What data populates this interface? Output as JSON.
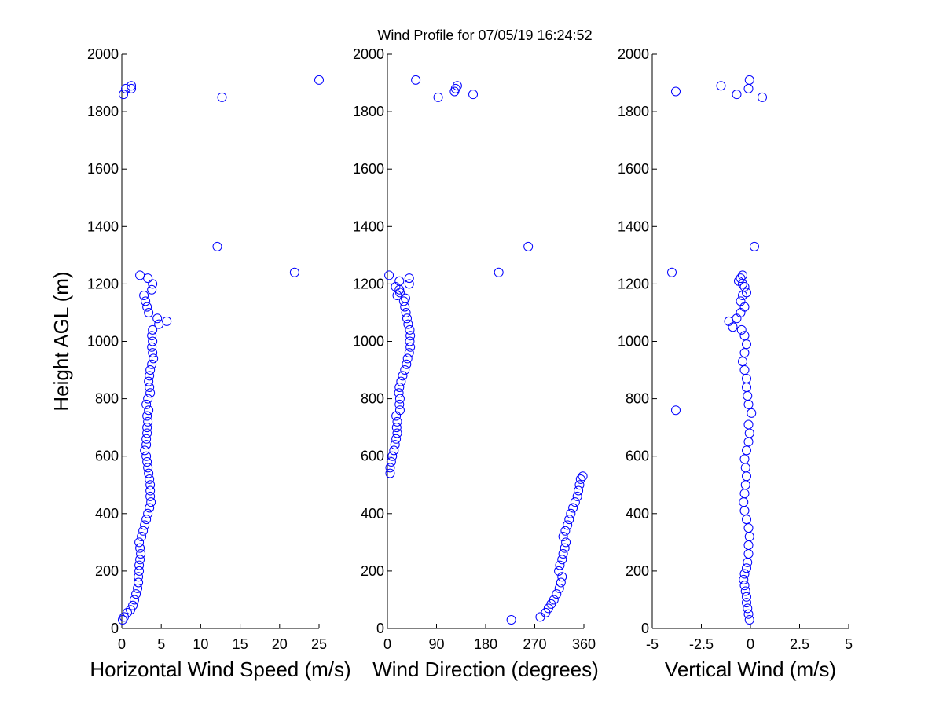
{
  "title": "Wind Profile for  07/05/19 16:24:52",
  "colors": {
    "marker": "#0000ff",
    "axis": "#000000",
    "background": "#ffffff"
  },
  "chart_data": [
    {
      "type": "scatter",
      "xlabel": "Horizontal Wind Speed (m/s)",
      "ylabel": "Height AGL (m)",
      "xlim": [
        0,
        25
      ],
      "ylim": [
        0,
        2000
      ],
      "xticks": [
        "0",
        "5",
        "10",
        "15",
        "20",
        "25"
      ],
      "xtick_values": [
        0,
        5,
        10,
        15,
        20,
        25
      ],
      "yticks": [
        "0",
        "200",
        "400",
        "600",
        "800",
        "1000",
        "1200",
        "1400",
        "1600",
        "1800",
        "2000"
      ],
      "ytick_values": [
        0,
        200,
        400,
        600,
        800,
        1000,
        1200,
        1400,
        1600,
        1800,
        2000
      ],
      "points": [
        [
          0.1,
          30
        ],
        [
          0.3,
          40
        ],
        [
          0.7,
          55
        ],
        [
          1.1,
          65
        ],
        [
          1.4,
          80
        ],
        [
          1.6,
          100
        ],
        [
          1.8,
          120
        ],
        [
          2.0,
          140
        ],
        [
          2.1,
          160
        ],
        [
          2.1,
          180
        ],
        [
          2.2,
          200
        ],
        [
          2.2,
          220
        ],
        [
          2.3,
          240
        ],
        [
          2.4,
          260
        ],
        [
          2.3,
          280
        ],
        [
          2.2,
          300
        ],
        [
          2.5,
          320
        ],
        [
          2.7,
          340
        ],
        [
          2.9,
          360
        ],
        [
          3.1,
          380
        ],
        [
          3.3,
          400
        ],
        [
          3.5,
          420
        ],
        [
          3.7,
          440
        ],
        [
          3.6,
          460
        ],
        [
          3.6,
          480
        ],
        [
          3.6,
          500
        ],
        [
          3.5,
          520
        ],
        [
          3.4,
          540
        ],
        [
          3.3,
          560
        ],
        [
          3.2,
          580
        ],
        [
          3.1,
          600
        ],
        [
          2.9,
          620
        ],
        [
          3.1,
          640
        ],
        [
          3.1,
          660
        ],
        [
          3.2,
          680
        ],
        [
          3.2,
          700
        ],
        [
          3.3,
          720
        ],
        [
          3.2,
          740
        ],
        [
          3.4,
          760
        ],
        [
          3.1,
          780
        ],
        [
          3.3,
          800
        ],
        [
          3.6,
          820
        ],
        [
          3.5,
          840
        ],
        [
          3.4,
          860
        ],
        [
          3.5,
          880
        ],
        [
          3.6,
          900
        ],
        [
          3.8,
          920
        ],
        [
          4.0,
          940
        ],
        [
          3.9,
          960
        ],
        [
          3.8,
          980
        ],
        [
          3.9,
          1000
        ],
        [
          3.8,
          1020
        ],
        [
          3.9,
          1040
        ],
        [
          4.7,
          1060
        ],
        [
          5.7,
          1070
        ],
        [
          4.5,
          1080
        ],
        [
          3.4,
          1100
        ],
        [
          3.2,
          1120
        ],
        [
          3.0,
          1140
        ],
        [
          2.8,
          1160
        ],
        [
          3.8,
          1180
        ],
        [
          3.9,
          1200
        ],
        [
          3.3,
          1220
        ],
        [
          2.3,
          1230
        ],
        [
          21.9,
          1240
        ],
        [
          12.1,
          1330
        ],
        [
          12.7,
          1850
        ],
        [
          0.2,
          1860
        ],
        [
          0.5,
          1880
        ],
        [
          1.2,
          1880
        ],
        [
          1.2,
          1890
        ],
        [
          25.0,
          1910
        ]
      ]
    },
    {
      "type": "scatter",
      "xlabel": "Wind Direction (degrees)",
      "ylabel": "",
      "xlim": [
        0,
        360
      ],
      "ylim": [
        0,
        2000
      ],
      "xticks": [
        "0",
        "90",
        "180",
        "270",
        "360"
      ],
      "xtick_values": [
        0,
        90,
        180,
        270,
        360
      ],
      "yticks": [
        "0",
        "200",
        "400",
        "600",
        "800",
        "1000",
        "1200",
        "1400",
        "1600",
        "1800",
        "2000"
      ],
      "ytick_values": [
        0,
        200,
        400,
        600,
        800,
        1000,
        1200,
        1400,
        1600,
        1800,
        2000
      ],
      "points": [
        [
          227,
          30
        ],
        [
          280,
          40
        ],
        [
          290,
          55
        ],
        [
          295,
          70
        ],
        [
          300,
          85
        ],
        [
          305,
          100
        ],
        [
          310,
          120
        ],
        [
          315,
          140
        ],
        [
          318,
          160
        ],
        [
          320,
          180
        ],
        [
          314,
          200
        ],
        [
          316,
          220
        ],
        [
          320,
          240
        ],
        [
          322,
          260
        ],
        [
          325,
          280
        ],
        [
          327,
          300
        ],
        [
          322,
          320
        ],
        [
          326,
          340
        ],
        [
          330,
          360
        ],
        [
          333,
          380
        ],
        [
          336,
          400
        ],
        [
          340,
          420
        ],
        [
          344,
          440
        ],
        [
          348,
          460
        ],
        [
          350,
          480
        ],
        [
          352,
          500
        ],
        [
          354,
          520
        ],
        [
          358,
          530
        ],
        [
          5,
          540
        ],
        [
          5,
          560
        ],
        [
          7,
          580
        ],
        [
          9,
          600
        ],
        [
          12,
          620
        ],
        [
          14,
          640
        ],
        [
          16,
          660
        ],
        [
          18,
          680
        ],
        [
          17,
          700
        ],
        [
          18,
          720
        ],
        [
          16,
          740
        ],
        [
          23,
          760
        ],
        [
          22,
          780
        ],
        [
          23,
          800
        ],
        [
          21,
          820
        ],
        [
          22,
          840
        ],
        [
          25,
          860
        ],
        [
          28,
          880
        ],
        [
          32,
          900
        ],
        [
          35,
          920
        ],
        [
          37,
          940
        ],
        [
          40,
          960
        ],
        [
          42,
          980
        ],
        [
          41,
          1000
        ],
        [
          42,
          1020
        ],
        [
          41,
          1040
        ],
        [
          38,
          1060
        ],
        [
          36,
          1080
        ],
        [
          34,
          1100
        ],
        [
          32,
          1120
        ],
        [
          30,
          1140
        ],
        [
          33,
          1150
        ],
        [
          18,
          1160
        ],
        [
          23,
          1170
        ],
        [
          22,
          1180
        ],
        [
          15,
          1190
        ],
        [
          22,
          1210
        ],
        [
          40,
          1200
        ],
        [
          40,
          1220
        ],
        [
          3,
          1230
        ],
        [
          204,
          1240
        ],
        [
          258,
          1330
        ],
        [
          93,
          1850
        ],
        [
          157,
          1860
        ],
        [
          123,
          1870
        ],
        [
          125,
          1880
        ],
        [
          128,
          1890
        ],
        [
          52,
          1910
        ]
      ]
    },
    {
      "type": "scatter",
      "xlabel": "Vertical Wind (m/s)",
      "ylabel": "",
      "xlim": [
        -5,
        5
      ],
      "ylim": [
        0,
        2000
      ],
      "xticks": [
        "-5",
        "-2.5",
        "0",
        "2.5",
        "5"
      ],
      "xtick_values": [
        -5,
        -2.5,
        0,
        2.5,
        5
      ],
      "yticks": [
        "0",
        "200",
        "400",
        "600",
        "800",
        "1000",
        "1200",
        "1400",
        "1600",
        "1800",
        "2000"
      ],
      "ytick_values": [
        0,
        200,
        400,
        600,
        800,
        1000,
        1200,
        1400,
        1600,
        1800,
        2000
      ],
      "points": [
        [
          -0.05,
          30
        ],
        [
          -0.1,
          50
        ],
        [
          -0.15,
          70
        ],
        [
          -0.2,
          90
        ],
        [
          -0.2,
          110
        ],
        [
          -0.25,
          130
        ],
        [
          -0.3,
          150
        ],
        [
          -0.35,
          170
        ],
        [
          -0.3,
          190
        ],
        [
          -0.2,
          210
        ],
        [
          -0.15,
          230
        ],
        [
          -0.1,
          260
        ],
        [
          -0.1,
          290
        ],
        [
          -0.05,
          320
        ],
        [
          -0.1,
          350
        ],
        [
          -0.2,
          380
        ],
        [
          -0.3,
          410
        ],
        [
          -0.35,
          440
        ],
        [
          -0.3,
          470
        ],
        [
          -0.25,
          500
        ],
        [
          -0.2,
          530
        ],
        [
          -0.25,
          560
        ],
        [
          -0.3,
          590
        ],
        [
          -0.2,
          620
        ],
        [
          -0.1,
          650
        ],
        [
          -0.05,
          680
        ],
        [
          -0.1,
          710
        ],
        [
          0.05,
          750
        ],
        [
          -0.1,
          780
        ],
        [
          -0.15,
          810
        ],
        [
          -0.2,
          840
        ],
        [
          -0.2,
          870
        ],
        [
          -0.3,
          900
        ],
        [
          -0.4,
          930
        ],
        [
          -0.3,
          960
        ],
        [
          -0.2,
          990
        ],
        [
          -0.3,
          1020
        ],
        [
          -0.45,
          1040
        ],
        [
          -0.9,
          1050
        ],
        [
          -1.1,
          1070
        ],
        [
          -0.7,
          1080
        ],
        [
          -0.5,
          1100
        ],
        [
          -0.3,
          1120
        ],
        [
          -0.5,
          1140
        ],
        [
          -0.4,
          1160
        ],
        [
          -0.2,
          1170
        ],
        [
          -0.3,
          1190
        ],
        [
          -0.4,
          1200
        ],
        [
          -0.6,
          1210
        ],
        [
          -0.5,
          1220
        ],
        [
          -0.4,
          1230
        ],
        [
          -4.0,
          1240
        ],
        [
          0.2,
          1330
        ],
        [
          -3.8,
          760
        ],
        [
          -1.5,
          1890
        ],
        [
          -0.7,
          1860
        ],
        [
          -3.8,
          1870
        ],
        [
          -0.1,
          1880
        ],
        [
          0.6,
          1850
        ],
        [
          -0.05,
          1910
        ]
      ]
    }
  ]
}
